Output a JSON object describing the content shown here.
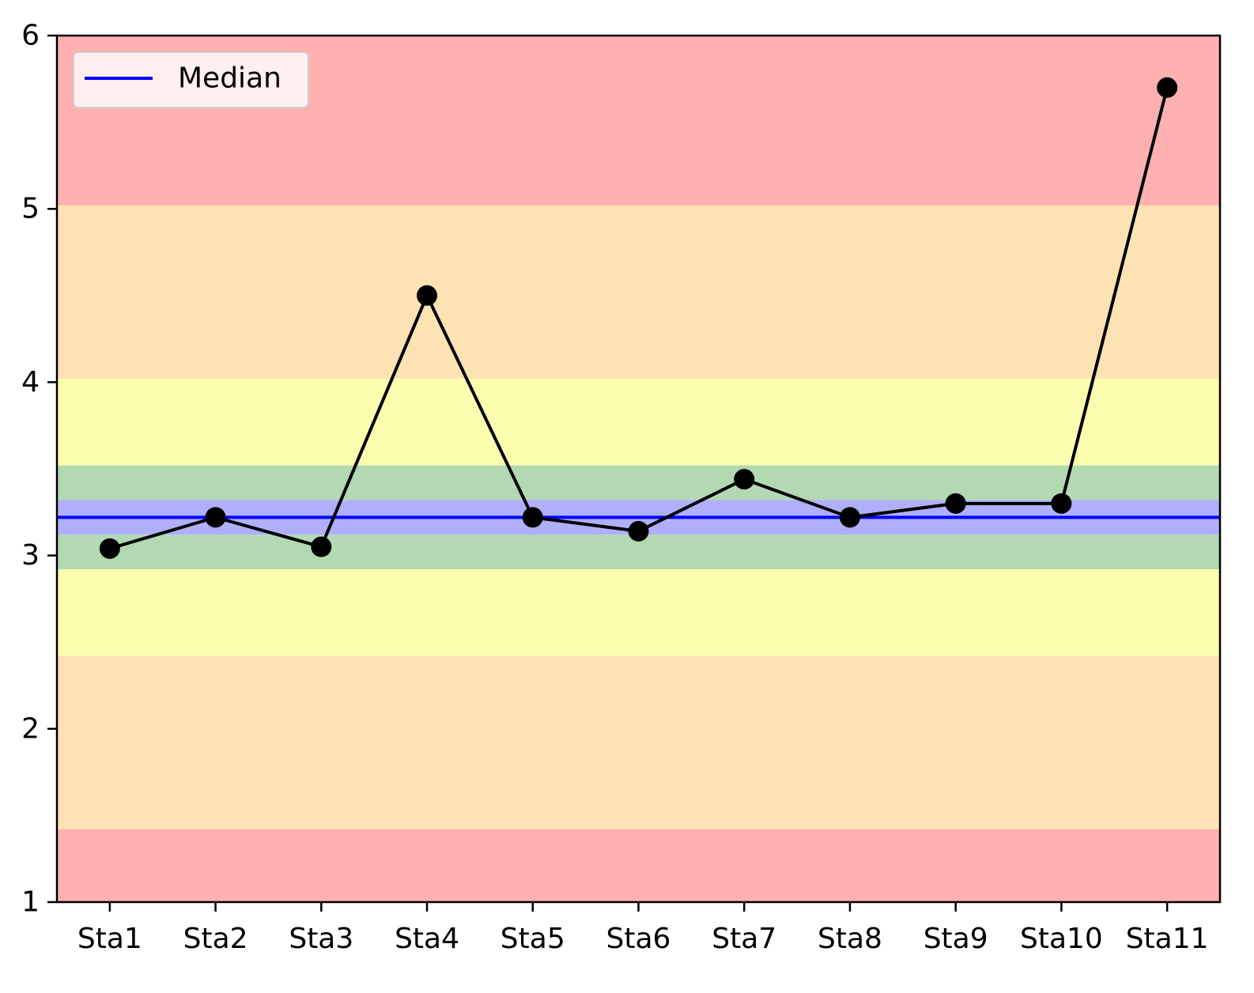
{
  "chart_data": {
    "type": "line",
    "title": "",
    "xlabel": "",
    "ylabel": "",
    "categories": [
      "Sta1",
      "Sta2",
      "Sta3",
      "Sta4",
      "Sta5",
      "Sta6",
      "Sta7",
      "Sta8",
      "Sta9",
      "Sta10",
      "Sta11"
    ],
    "series": [
      {
        "values": [
          3.04,
          3.22,
          3.05,
          4.5,
          3.22,
          3.14,
          3.44,
          3.22,
          3.3,
          3.3,
          5.7
        ],
        "color": "#000000",
        "marker": "circle"
      }
    ],
    "median": {
      "name": "Median",
      "value": 3.22,
      "color": "#0000ff"
    },
    "ylim": [
      1,
      6
    ],
    "yticks": [
      "1",
      "2",
      "3",
      "4",
      "5",
      "6"
    ],
    "grid": false,
    "legend": {
      "position": "top-left",
      "entries": [
        "Median"
      ]
    },
    "bands": [
      {
        "from": 1.0,
        "to": 1.42,
        "color": "#ffb0b0"
      },
      {
        "from": 1.42,
        "to": 2.42,
        "color": "#fde2b4"
      },
      {
        "from": 2.42,
        "to": 2.92,
        "color": "#fdfdb0"
      },
      {
        "from": 2.92,
        "to": 3.12,
        "color": "#b3d9b3"
      },
      {
        "from": 3.12,
        "to": 3.32,
        "color": "#b0b0fa"
      },
      {
        "from": 3.32,
        "to": 3.52,
        "color": "#b3d9b3"
      },
      {
        "from": 3.52,
        "to": 4.02,
        "color": "#fdfdb0"
      },
      {
        "from": 4.02,
        "to": 5.02,
        "color": "#fde2b4"
      },
      {
        "from": 5.02,
        "to": 6.0,
        "color": "#ffb0b0"
      }
    ]
  }
}
